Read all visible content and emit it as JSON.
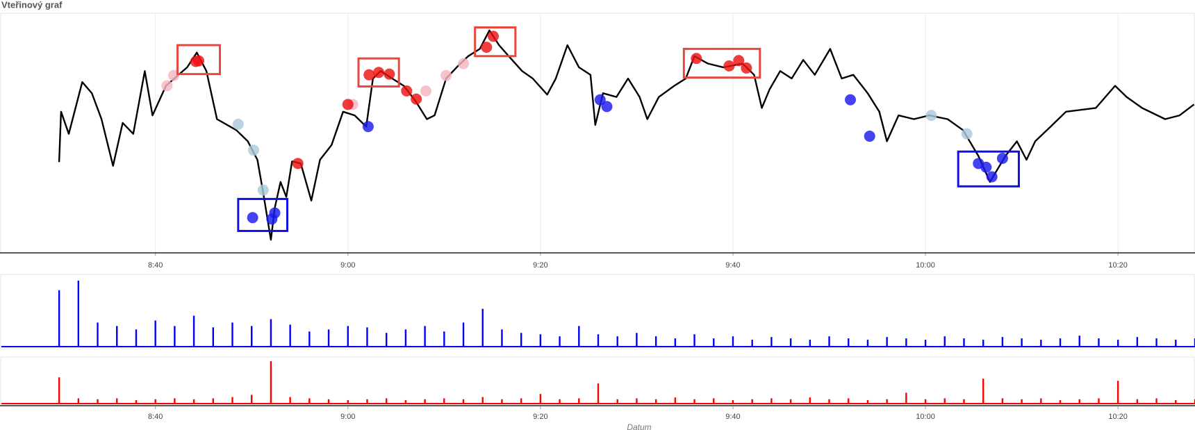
{
  "chart_data": [
    {
      "type": "line",
      "title": "Vteřinový graf",
      "color": "#000000",
      "grid": true,
      "xlim": [
        504,
        628
      ],
      "ylim": [
        0,
        100
      ],
      "xticks": [
        {
          "value": 520,
          "label": "8:40"
        },
        {
          "value": 540,
          "label": "9:00"
        },
        {
          "value": 560,
          "label": "9:20"
        },
        {
          "value": 580,
          "label": "9:40"
        },
        {
          "value": 600,
          "label": "10:00"
        },
        {
          "value": 620,
          "label": "10:20"
        }
      ],
      "x": [
        510.0,
        510.2,
        511.0,
        512.4,
        513.4,
        514.4,
        515.6,
        516.6,
        517.7,
        518.9,
        519.7,
        521.1,
        523.3,
        524.3,
        525.3,
        526.4,
        528.4,
        529.6,
        530.6,
        531.2,
        532.0,
        532.4,
        533.0,
        533.6,
        534.2,
        535.1,
        536.2,
        537.1,
        538.3,
        539.5,
        540.7,
        541.9,
        542.6,
        543.4,
        544.6,
        545.8,
        547.0,
        548.2,
        549.0,
        550.2,
        551.3,
        552.5,
        553.7,
        554.7,
        555.7,
        556.7,
        558.1,
        559.2,
        560.7,
        561.6,
        562.8,
        564.0,
        565.2,
        565.7,
        566.5,
        567.9,
        569.1,
        570.3,
        571.1,
        572.3,
        573.9,
        575.1,
        576.0,
        577.4,
        579.0,
        581.0,
        582.2,
        583.0,
        583.8,
        584.9,
        586.1,
        587.3,
        588.5,
        590.1,
        591.3,
        592.5,
        594.0,
        595.2,
        596.0,
        597.2,
        598.8,
        600.4,
        602.3,
        603.9,
        605.5,
        606.7,
        608.3,
        609.5,
        610.5,
        611.4,
        613.0,
        614.6,
        617.7,
        619.7,
        620.9,
        622.5,
        624.9,
        626.4,
        627.9
      ],
      "values": [
        37.7,
        59.3,
        49.8,
        72.0,
        67.2,
        56.1,
        36.1,
        54.5,
        49.8,
        76.7,
        57.7,
        70.4,
        78.3,
        84.6,
        76.7,
        56.1,
        51.4,
        46.6,
        38.7,
        24.4,
        4.4,
        18.1,
        29.2,
        22.8,
        38.0,
        37.1,
        21.2,
        38.7,
        45.0,
        59.3,
        57.7,
        52.9,
        73.5,
        76.7,
        73.5,
        70.4,
        64.0,
        56.1,
        57.7,
        73.5,
        78.3,
        83.1,
        86.2,
        94.1,
        87.8,
        83.1,
        76.7,
        73.5,
        66.6,
        73.5,
        87.8,
        78.3,
        75.1,
        53.6,
        67.2,
        65.6,
        73.5,
        65.6,
        56.1,
        65.6,
        70.4,
        73.5,
        83.1,
        79.9,
        78.3,
        79.9,
        75.1,
        60.9,
        68.8,
        76.7,
        73.5,
        81.5,
        75.1,
        86.2,
        73.5,
        75.1,
        67.2,
        59.3,
        46.6,
        57.7,
        56.1,
        57.7,
        56.1,
        51.4,
        40.3,
        29.2,
        40.3,
        46.6,
        38.7,
        46.6,
        52.9,
        59.3,
        60.9,
        70.4,
        65.6,
        60.9,
        56.1,
        57.7,
        62.4
      ],
      "markers": [
        {
          "color": "#f4b6c0",
          "x": [
            521.2,
            521.9,
            540.5,
            548.1,
            550.2,
            552.0
          ],
          "values": [
            70.4,
            74.8,
            62.4,
            68.2,
            74.8,
            79.9
          ]
        },
        {
          "color": "#a9c9da",
          "x": [
            528.6,
            530.2,
            531.2,
            600.6,
            604.3
          ],
          "values": [
            53.9,
            42.8,
            25.7,
            57.7,
            49.8
          ]
        },
        {
          "color": "#ee1111",
          "x": [
            524.2,
            524.5,
            540.0,
            534.8,
            542.2,
            543.2,
            544.3,
            546.1,
            547.1,
            554.4,
            555.1,
            576.2,
            579.6,
            580.6,
            581.4
          ],
          "values": [
            80.8,
            81.1,
            62.4,
            37.1,
            75.1,
            76.1,
            75.4,
            68.2,
            64.7,
            86.9,
            91.6,
            82.1,
            78.9,
            81.2,
            78.0
          ]
        },
        {
          "color": "#1a1aee",
          "x": [
            530.1,
            532.1,
            532.4,
            542.1,
            566.2,
            566.9,
            592.2,
            594.2,
            605.5,
            606.3,
            606.9,
            608.0
          ],
          "values": [
            13.9,
            13.3,
            15.9,
            52.9,
            64.4,
            61.5,
            64.4,
            48.8,
            37.1,
            35.5,
            31.4,
            39.3
          ]
        }
      ],
      "boxes": [
        {
          "color": "#e8473f",
          "x": [
            522.3,
            526.7
          ],
          "y": [
            75.4,
            87.8
          ]
        },
        {
          "color": "#e8473f",
          "x": [
            541.1,
            545.3
          ],
          "y": [
            70.1,
            82.1
          ]
        },
        {
          "color": "#e8473f",
          "x": [
            553.2,
            557.4
          ],
          "y": [
            83.1,
            95.4
          ]
        },
        {
          "color": "#e8473f",
          "x": [
            574.9,
            582.8
          ],
          "y": [
            73.9,
            86.2
          ]
        },
        {
          "color": "#1010e0",
          "x": [
            528.6,
            533.7
          ],
          "y": [
            8.2,
            21.9
          ]
        },
        {
          "color": "#1010e0",
          "x": [
            603.4,
            609.7
          ],
          "y": [
            27.3,
            42.2
          ]
        }
      ]
    },
    {
      "type": "bar",
      "color": "#0000ff",
      "xlim": [
        504,
        628
      ],
      "ylim": [
        0,
        100
      ],
      "x": [
        510,
        512,
        514,
        516,
        518,
        520,
        522,
        524,
        526,
        528,
        530,
        532,
        534,
        536,
        538,
        540,
        542,
        544,
        546,
        548,
        550,
        552,
        554,
        556,
        558,
        560,
        562,
        564,
        566,
        568,
        570,
        572,
        574,
        576,
        578,
        580,
        582,
        584,
        586,
        588,
        590,
        592,
        594,
        596,
        598,
        600,
        602,
        604,
        606,
        608,
        610,
        612,
        614,
        616,
        618,
        620,
        622,
        624,
        626,
        628
      ],
      "values": [
        82,
        96,
        35,
        30,
        25,
        38,
        30,
        45,
        28,
        35,
        30,
        40,
        32,
        22,
        25,
        30,
        28,
        20,
        25,
        30,
        22,
        35,
        55,
        25,
        20,
        18,
        15,
        30,
        18,
        15,
        20,
        15,
        12,
        18,
        12,
        15,
        10,
        14,
        12,
        10,
        15,
        12,
        10,
        14,
        12,
        10,
        15,
        12,
        10,
        14,
        12,
        10,
        12,
        16,
        12,
        10,
        14,
        12,
        10,
        12
      ]
    },
    {
      "type": "bar",
      "color": "#ff0000",
      "xlim": [
        504,
        628
      ],
      "ylim": [
        0,
        100
      ],
      "xlabel": "Datum",
      "xticks": [
        {
          "value": 520,
          "label": "8:40"
        },
        {
          "value": 540,
          "label": "9:00"
        },
        {
          "value": 560,
          "label": "9:20"
        },
        {
          "value": 580,
          "label": "9:40"
        },
        {
          "value": 600,
          "label": "10:00"
        },
        {
          "value": 620,
          "label": "10:20"
        }
      ],
      "x": [
        510,
        512,
        514,
        516,
        518,
        520,
        522,
        524,
        526,
        528,
        530,
        532,
        534,
        536,
        538,
        540,
        542,
        544,
        546,
        548,
        550,
        552,
        554,
        556,
        558,
        560,
        562,
        564,
        566,
        568,
        570,
        572,
        574,
        576,
        578,
        580,
        582,
        584,
        586,
        588,
        590,
        592,
        594,
        596,
        598,
        600,
        602,
        604,
        606,
        608,
        610,
        612,
        614,
        616,
        618,
        620,
        622,
        624,
        626,
        628
      ],
      "values": [
        60,
        12,
        10,
        12,
        8,
        10,
        12,
        10,
        12,
        15,
        20,
        97,
        15,
        12,
        10,
        8,
        10,
        12,
        8,
        10,
        12,
        10,
        15,
        10,
        12,
        22,
        10,
        12,
        46,
        10,
        12,
        10,
        14,
        10,
        12,
        8,
        10,
        12,
        10,
        14,
        10,
        12,
        8,
        10,
        25,
        10,
        12,
        10,
        57,
        12,
        10,
        12,
        8,
        10,
        12,
        52,
        10,
        12,
        8,
        10
      ]
    }
  ]
}
